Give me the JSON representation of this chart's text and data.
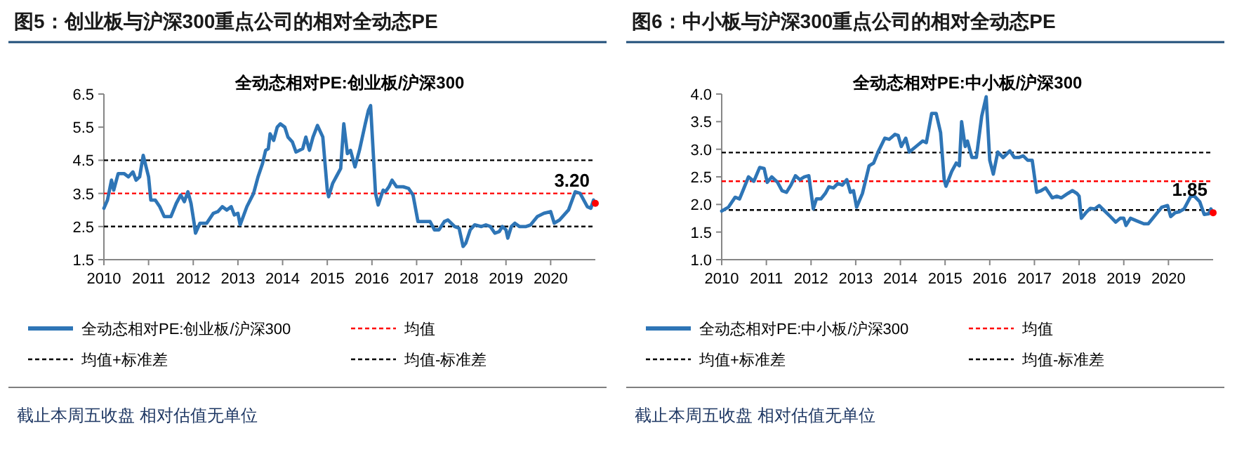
{
  "chart_data": [
    {
      "type": "line",
      "title": "图5：创业板与沪深300重点公司的相对全动态PE",
      "subtitle": "全动态相对PE:创业板/沪深300",
      "x": [
        2010.0,
        2010.08,
        2010.17,
        2010.22,
        2010.32,
        2010.45,
        2010.55,
        2010.65,
        2010.72,
        2010.8,
        2010.88,
        2011.0,
        2011.05,
        2011.15,
        2011.25,
        2011.35,
        2011.5,
        2011.62,
        2011.72,
        2011.8,
        2011.88,
        2011.95,
        2012.02,
        2012.05,
        2012.15,
        2012.3,
        2012.45,
        2012.55,
        2012.65,
        2012.75,
        2012.85,
        2012.92,
        2013.0,
        2013.05,
        2013.2,
        2013.35,
        2013.45,
        2013.55,
        2013.62,
        2013.68,
        2013.72,
        2013.8,
        2013.88,
        2013.95,
        2014.05,
        2014.12,
        2014.22,
        2014.3,
        2014.45,
        2014.52,
        2014.6,
        2014.68,
        2014.78,
        2014.9,
        2015.0,
        2015.03,
        2015.12,
        2015.2,
        2015.3,
        2015.37,
        2015.45,
        2015.52,
        2015.62,
        2015.72,
        2015.85,
        2015.92,
        2015.97,
        2016.08,
        2016.14,
        2016.25,
        2016.3,
        2016.38,
        2016.45,
        2016.55,
        2016.7,
        2016.82,
        2016.92,
        2017.03,
        2017.2,
        2017.3,
        2017.4,
        2017.5,
        2017.62,
        2017.7,
        2017.85,
        2017.95,
        2018.04,
        2018.1,
        2018.2,
        2018.3,
        2018.45,
        2018.55,
        2018.65,
        2018.75,
        2018.85,
        2018.92,
        2019.0,
        2019.04,
        2019.12,
        2019.2,
        2019.3,
        2019.45,
        2019.55,
        2019.7,
        2019.85,
        2020.0,
        2020.08,
        2020.2,
        2020.4,
        2020.55,
        2020.66,
        2020.82,
        2020.9,
        2020.96,
        2021.0
      ],
      "series": [
        {
          "name": "全动态相对PE:创业板/沪深300",
          "color": "#2e75b6",
          "values": [
            3.05,
            3.3,
            3.9,
            3.6,
            4.1,
            4.1,
            4.0,
            4.15,
            3.9,
            4.0,
            4.65,
            4.0,
            3.3,
            3.3,
            3.1,
            2.8,
            2.8,
            3.2,
            3.45,
            3.25,
            3.55,
            3.2,
            2.6,
            2.3,
            2.6,
            2.6,
            2.9,
            2.95,
            3.1,
            3.0,
            3.1,
            2.85,
            2.9,
            2.55,
            3.1,
            3.5,
            4.0,
            4.4,
            4.8,
            4.85,
            5.3,
            5.1,
            5.5,
            5.6,
            5.5,
            5.2,
            5.05,
            4.75,
            4.85,
            5.2,
            4.8,
            5.2,
            5.55,
            5.2,
            3.6,
            3.4,
            3.8,
            4.0,
            4.25,
            5.6,
            4.7,
            4.8,
            4.3,
            4.8,
            5.6,
            6.0,
            6.15,
            3.5,
            3.15,
            3.6,
            3.55,
            3.7,
            3.9,
            3.7,
            3.7,
            3.65,
            3.45,
            2.65,
            2.65,
            2.65,
            2.4,
            2.4,
            2.65,
            2.7,
            2.5,
            2.45,
            1.9,
            2.0,
            2.4,
            2.55,
            2.5,
            2.55,
            2.5,
            2.3,
            2.35,
            2.5,
            2.4,
            2.15,
            2.5,
            2.6,
            2.5,
            2.5,
            2.55,
            2.8,
            2.9,
            2.95,
            2.6,
            2.7,
            3.0,
            3.55,
            3.5,
            3.1,
            3.05,
            3.3,
            3.2
          ]
        },
        {
          "type": "scatter",
          "color": "#ff0000",
          "x": [
            2021.0
          ],
          "values": [
            3.2
          ]
        }
      ],
      "xlim": [
        2010,
        2021
      ],
      "xticks": [
        2010,
        2011,
        2012,
        2013,
        2014,
        2015,
        2016,
        2017,
        2018,
        2019,
        2020
      ],
      "ylim": [
        1.5,
        6.5
      ],
      "yticks": [
        1.5,
        2.5,
        3.5,
        4.5,
        5.5,
        6.5
      ],
      "ref_lines": [
        {
          "axis": "y",
          "value": 3.5,
          "label": "均值",
          "color": "#ff0000",
          "line_style": "dashed"
        },
        {
          "axis": "y",
          "value": 4.5,
          "label": "均值+标准差",
          "color": "#000000",
          "line_style": "dashed"
        },
        {
          "axis": "y",
          "value": 2.5,
          "label": "均值-标准差",
          "color": "#000000",
          "line_style": "dashed"
        }
      ],
      "legend": "bottom",
      "annotations": [
        {
          "text": "3.20",
          "x": 2021.0,
          "y": 3.2
        },
        "截止本周五收盘 相对估值无单位"
      ]
    },
    {
      "type": "line",
      "title": "图6：中小板与沪深300重点公司的相对全动态PE",
      "subtitle": "全动态相对PE:中小板/沪深300",
      "x": [
        2010.0,
        2010.15,
        2010.3,
        2010.4,
        2010.5,
        2010.6,
        2010.72,
        2010.85,
        2010.95,
        2011.02,
        2011.12,
        2011.25,
        2011.35,
        2011.45,
        2011.55,
        2011.65,
        2011.75,
        2011.85,
        2011.95,
        2012.05,
        2012.12,
        2012.22,
        2012.32,
        2012.4,
        2012.5,
        2012.6,
        2012.7,
        2012.8,
        2012.88,
        2012.95,
        2013.02,
        2013.15,
        2013.3,
        2013.4,
        2013.5,
        2013.65,
        2013.75,
        2013.88,
        2013.95,
        2014.02,
        2014.12,
        2014.2,
        2014.35,
        2014.5,
        2014.58,
        2014.7,
        2014.8,
        2014.9,
        2014.98,
        2015.02,
        2015.15,
        2015.25,
        2015.32,
        2015.37,
        2015.45,
        2015.5,
        2015.6,
        2015.7,
        2015.82,
        2015.92,
        2016.0,
        2016.08,
        2016.18,
        2016.3,
        2016.45,
        2016.55,
        2016.65,
        2016.75,
        2016.85,
        2016.95,
        2017.05,
        2017.15,
        2017.25,
        2017.4,
        2017.5,
        2017.6,
        2017.75,
        2017.85,
        2017.95,
        2018.0,
        2018.05,
        2018.15,
        2018.25,
        2018.35,
        2018.45,
        2018.55,
        2018.7,
        2018.82,
        2018.92,
        2019.0,
        2019.05,
        2019.15,
        2019.3,
        2019.45,
        2019.55,
        2019.7,
        2019.85,
        2019.98,
        2020.05,
        2020.15,
        2020.25,
        2020.35,
        2020.5,
        2020.58,
        2020.7,
        2020.8,
        2020.9,
        2020.95,
        2021.0
      ],
      "series": [
        {
          "name": "全动态相对PE:中小板/沪深300",
          "color": "#2e75b6",
          "values": [
            1.88,
            1.95,
            2.13,
            2.1,
            2.3,
            2.5,
            2.42,
            2.67,
            2.65,
            2.4,
            2.5,
            2.4,
            2.25,
            2.22,
            2.35,
            2.52,
            2.45,
            2.5,
            2.52,
            1.92,
            2.1,
            2.1,
            2.2,
            2.32,
            2.3,
            2.38,
            2.35,
            2.45,
            2.22,
            2.25,
            1.95,
            2.2,
            2.7,
            2.75,
            2.95,
            3.2,
            3.18,
            3.27,
            3.25,
            3.05,
            3.2,
            2.95,
            3.05,
            3.15,
            3.12,
            3.65,
            3.65,
            3.3,
            2.45,
            2.33,
            2.6,
            2.75,
            2.7,
            3.5,
            3.05,
            3.15,
            2.85,
            2.85,
            3.6,
            3.95,
            2.8,
            2.55,
            2.95,
            2.85,
            2.97,
            2.85,
            2.85,
            2.88,
            2.8,
            2.8,
            2.22,
            2.25,
            2.3,
            2.12,
            2.15,
            2.12,
            2.2,
            2.25,
            2.2,
            2.15,
            1.75,
            1.85,
            1.93,
            1.92,
            1.98,
            1.9,
            1.78,
            1.68,
            1.75,
            1.75,
            1.62,
            1.75,
            1.7,
            1.65,
            1.65,
            1.8,
            1.95,
            1.98,
            1.78,
            1.85,
            1.87,
            1.92,
            2.15,
            2.15,
            2.05,
            1.82,
            1.83,
            1.92,
            1.85
          ]
        },
        {
          "type": "scatter",
          "color": "#ff0000",
          "x": [
            2021.0
          ],
          "values": [
            1.85
          ]
        }
      ],
      "xlim": [
        2010,
        2021
      ],
      "xticks": [
        2010,
        2011,
        2012,
        2013,
        2014,
        2015,
        2016,
        2017,
        2018,
        2019,
        2020
      ],
      "ylim": [
        1.0,
        4.0
      ],
      "yticks": [
        {
          "value": 1,
          "label": "1.0"
        },
        1.5,
        {
          "value": 2,
          "label": "2.0"
        },
        2.5,
        {
          "value": 3,
          "label": "3.0"
        },
        3.5,
        {
          "value": 4,
          "label": "4.0"
        }
      ],
      "ref_lines": [
        {
          "axis": "y",
          "value": 2.42,
          "label": "均值",
          "color": "#ff0000",
          "line_style": "dashed"
        },
        {
          "axis": "y",
          "value": 2.94,
          "label": "均值+标准差",
          "color": "#000000",
          "line_style": "dashed"
        },
        {
          "axis": "y",
          "value": 1.9,
          "label": "均值-标准差",
          "color": "#000000",
          "line_style": "dashed"
        }
      ],
      "legend": "bottom",
      "annotations": [
        {
          "text": "1.85",
          "x": 2021.0,
          "y": 1.85
        },
        "截止本周五收盘 相对估值无单位"
      ]
    }
  ]
}
